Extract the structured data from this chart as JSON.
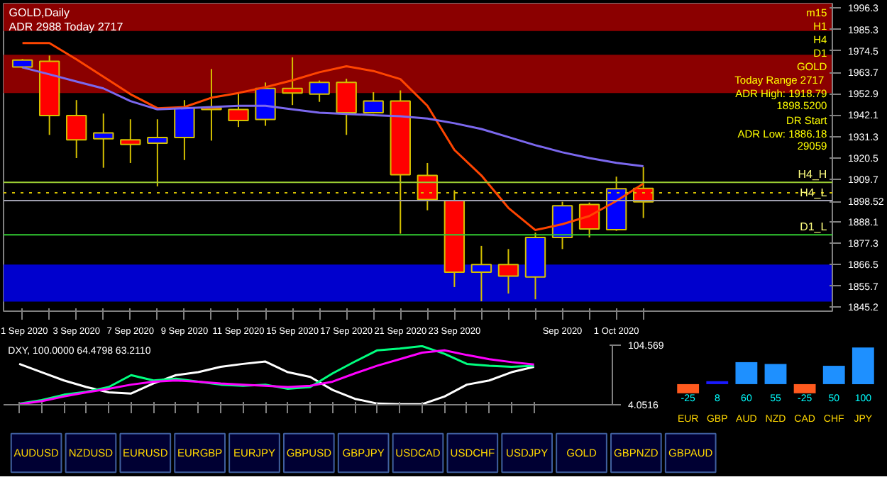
{
  "chart_data": [
    {
      "type": "candlestick",
      "title": "GOLD,Daily",
      "subtitle": "ADR 2988  Today 2717",
      "categories": [
        "1 Sep 2020",
        null,
        "3 Sep 2020",
        null,
        "7 Sep 2020",
        null,
        "9 Sep 2020",
        null,
        "11 Sep 2020",
        null,
        "15 Sep 2020",
        null,
        "17 Sep 2020",
        null,
        "21 Sep 2020",
        null,
        "23 Sep 2020",
        null,
        null,
        null,
        "Sep 2020",
        null,
        "1 Oct 2020",
        null
      ],
      "ohlc": [
        [
          1966.4,
          1970.5,
          1965.8,
          1969.9
        ],
        [
          1969.3,
          1972.2,
          1932.1,
          1941.9
        ],
        [
          1941.9,
          1949.7,
          1920.4,
          1929.6
        ],
        [
          1930.2,
          1942.9,
          1915.5,
          1933.1
        ],
        [
          1929.6,
          1940.0,
          1917.9,
          1927.3
        ],
        [
          1927.9,
          1940.0,
          1906.1,
          1930.8
        ],
        [
          1930.8,
          1949.7,
          1919.4,
          1945.8
        ],
        [
          1945.8,
          1965.4,
          1929.2,
          1944.9
        ],
        [
          1944.9,
          1953.7,
          1936.1,
          1939.4
        ],
        [
          1939.9,
          1958.6,
          1936.7,
          1955.6
        ],
        [
          1955.6,
          1971.3,
          1947.2,
          1953.3
        ],
        [
          1952.7,
          1959.6,
          1948.8,
          1958.6
        ],
        [
          1958.6,
          1960.5,
          1932.1,
          1943.3
        ],
        [
          1943.3,
          1953.7,
          1942.9,
          1949.2
        ],
        [
          1949.2,
          1954.6,
          1882.2,
          1912.0
        ],
        [
          1911.6,
          1917.9,
          1894.0,
          1899.4
        ],
        [
          1898.9,
          1904.1,
          1855.2,
          1862.7
        ],
        [
          1862.7,
          1876.0,
          1848.0,
          1866.6
        ],
        [
          1866.6,
          1874.4,
          1851.9,
          1860.7
        ],
        [
          1860.3,
          1882.7,
          1849.0,
          1880.3
        ],
        [
          1880.3,
          1898.3,
          1874.4,
          1896.3
        ],
        [
          1896.9,
          1897.9,
          1880.3,
          1884.6
        ],
        [
          1884.2,
          1911.0,
          1883.6,
          1904.9
        ],
        [
          1905.1,
          1915.9,
          1890.1,
          1898.3
        ]
      ],
      "colors": [
        "#0000ff",
        "#ff0000",
        "#ff0000",
        "#0000ff",
        "#ff0000",
        "#0000ff",
        "#0000ff",
        "#ff0000",
        "#ff0000",
        "#0000ff",
        "#ff0000",
        "#0000ff",
        "#ff0000",
        "#0000ff",
        "#ff0000",
        "#ff0000",
        "#ff0000",
        "#0000ff",
        "#ff0000",
        "#0000ff",
        "#0000ff",
        "#ff0000",
        "#0000ff",
        "#ff0000"
      ],
      "series": [
        {
          "type": "line",
          "color": "#ff4500",
          "values": [
            1978.5,
            1978.5,
            1970.3,
            1961.5,
            1952.7,
            1945.6,
            1946.2,
            1950.9,
            1953.3,
            1956.2,
            1959.7,
            1963.8,
            1966.8,
            1964.4,
            1960.3,
            1946.8,
            1924.5,
            1911.6,
            1895.2,
            1884.0,
            1887.0,
            1891.1,
            1898.7,
            1907.5
          ]
        },
        {
          "type": "line",
          "color": "#7b68ee",
          "values": [
            1966.2,
            1962.7,
            1959.1,
            1955.6,
            1949.2,
            1945.0,
            1945.6,
            1946.2,
            1946.8,
            1946.8,
            1945.0,
            1943.3,
            1942.7,
            1942.1,
            1941.5,
            1940.4,
            1938.0,
            1935.1,
            1931.0,
            1926.9,
            1923.3,
            1920.4,
            1918.0,
            1916.3
          ]
        }
      ],
      "ylim": [
        1843.0,
        1998.5
      ],
      "yticks": [
        1996.3,
        1985.3,
        1974.5,
        1963.7,
        1952.9,
        1942.1,
        1931.3,
        1920.5,
        1909.7,
        {
          "value": 1898.52,
          "label": "1898.52"
        },
        1888.1,
        1877.3,
        1866.5,
        1855.7,
        1845.2
      ],
      "bands": [
        {
          "axis": "y",
          "from": 1984.6,
          "to": 1998.5,
          "color": "#8b0000"
        },
        {
          "axis": "y",
          "from": 1953.3,
          "to": 1972.6,
          "color": "#8b0000"
        },
        {
          "axis": "y",
          "from": 1847.8,
          "to": 1866.6,
          "color": "#0000cd"
        }
      ],
      "ref_lines": [
        {
          "axis": "y",
          "value": 1908.1,
          "label": "H4_H",
          "color": "#9acd32"
        },
        {
          "axis": "y",
          "value": 1902.8,
          "label": null,
          "color": "#d4c000",
          "line_style": "dotted"
        },
        {
          "axis": "y",
          "value": 1898.9,
          "label": "H4_L",
          "color": "#a0a0b0"
        },
        {
          "axis": "y",
          "value": 1881.6,
          "label": "D1_L",
          "color": "#32cd32"
        }
      ],
      "annotations": [
        "m15",
        "H1",
        "H4",
        "D1",
        "GOLD",
        "Today Range  2717",
        "ADR High: 1918.79",
        "1898.5200",
        "DR Start",
        "ADR Low: 1886.18",
        "29059"
      ]
    },
    {
      "type": "line",
      "title": "DXY, 100.0000 64.4798 63.2110",
      "categories": [
        null,
        null,
        null,
        null,
        null,
        null,
        null,
        null,
        null,
        null,
        null,
        null,
        null,
        null,
        null,
        null,
        null,
        null,
        null,
        null,
        null,
        null,
        null,
        null
      ],
      "series": [
        {
          "color": "#ffffff",
          "values": [
            73,
            59,
            45,
            34,
            25,
            23,
            40,
            54,
            59,
            68,
            73,
            77,
            59,
            51,
            29,
            14,
            6,
            5,
            5,
            18,
            38,
            45,
            59,
            68
          ]
        },
        {
          "color": "#00ff7f",
          "values": [
            6,
            12,
            21,
            26,
            34,
            54,
            45,
            48,
            43,
            38,
            36,
            38,
            31,
            34,
            57,
            77,
            96,
            99,
            103,
            90,
            73,
            70,
            68,
            70
          ]
        },
        {
          "color": "#ff00ff",
          "values": [
            5,
            10,
            18,
            25,
            31,
            38,
            43,
            45,
            43,
            40,
            38,
            36,
            34,
            36,
            43,
            57,
            70,
            81,
            92,
            96,
            88,
            81,
            76,
            72
          ]
        }
      ],
      "ylim": [
        4.0516,
        104.569
      ],
      "yticks": [
        104.569,
        4.0516
      ]
    },
    {
      "type": "bar",
      "categories": [
        "EUR",
        "GBP",
        "AUD",
        "NZD",
        "CAD",
        "CHF",
        "JPY"
      ],
      "values": [
        -25,
        8,
        60,
        55,
        -25,
        50,
        100
      ],
      "colors": [
        "#ff5a1e",
        "#1a1aff",
        "#1e90ff",
        "#1e90ff",
        "#ff5a1e",
        "#1e90ff",
        "#1e90ff"
      ],
      "data_labels": true
    },
    {
      "type": "other",
      "annotations": [
        "AUDUSD",
        "NZDUSD",
        "EURUSD",
        "EURGBP",
        "EURJPY",
        "GBPUSD",
        "GBPJPY",
        "USDCAD",
        "USDCHF",
        "USDJPY",
        "GOLD",
        "GBPNZD",
        "GBPAUD"
      ]
    }
  ]
}
